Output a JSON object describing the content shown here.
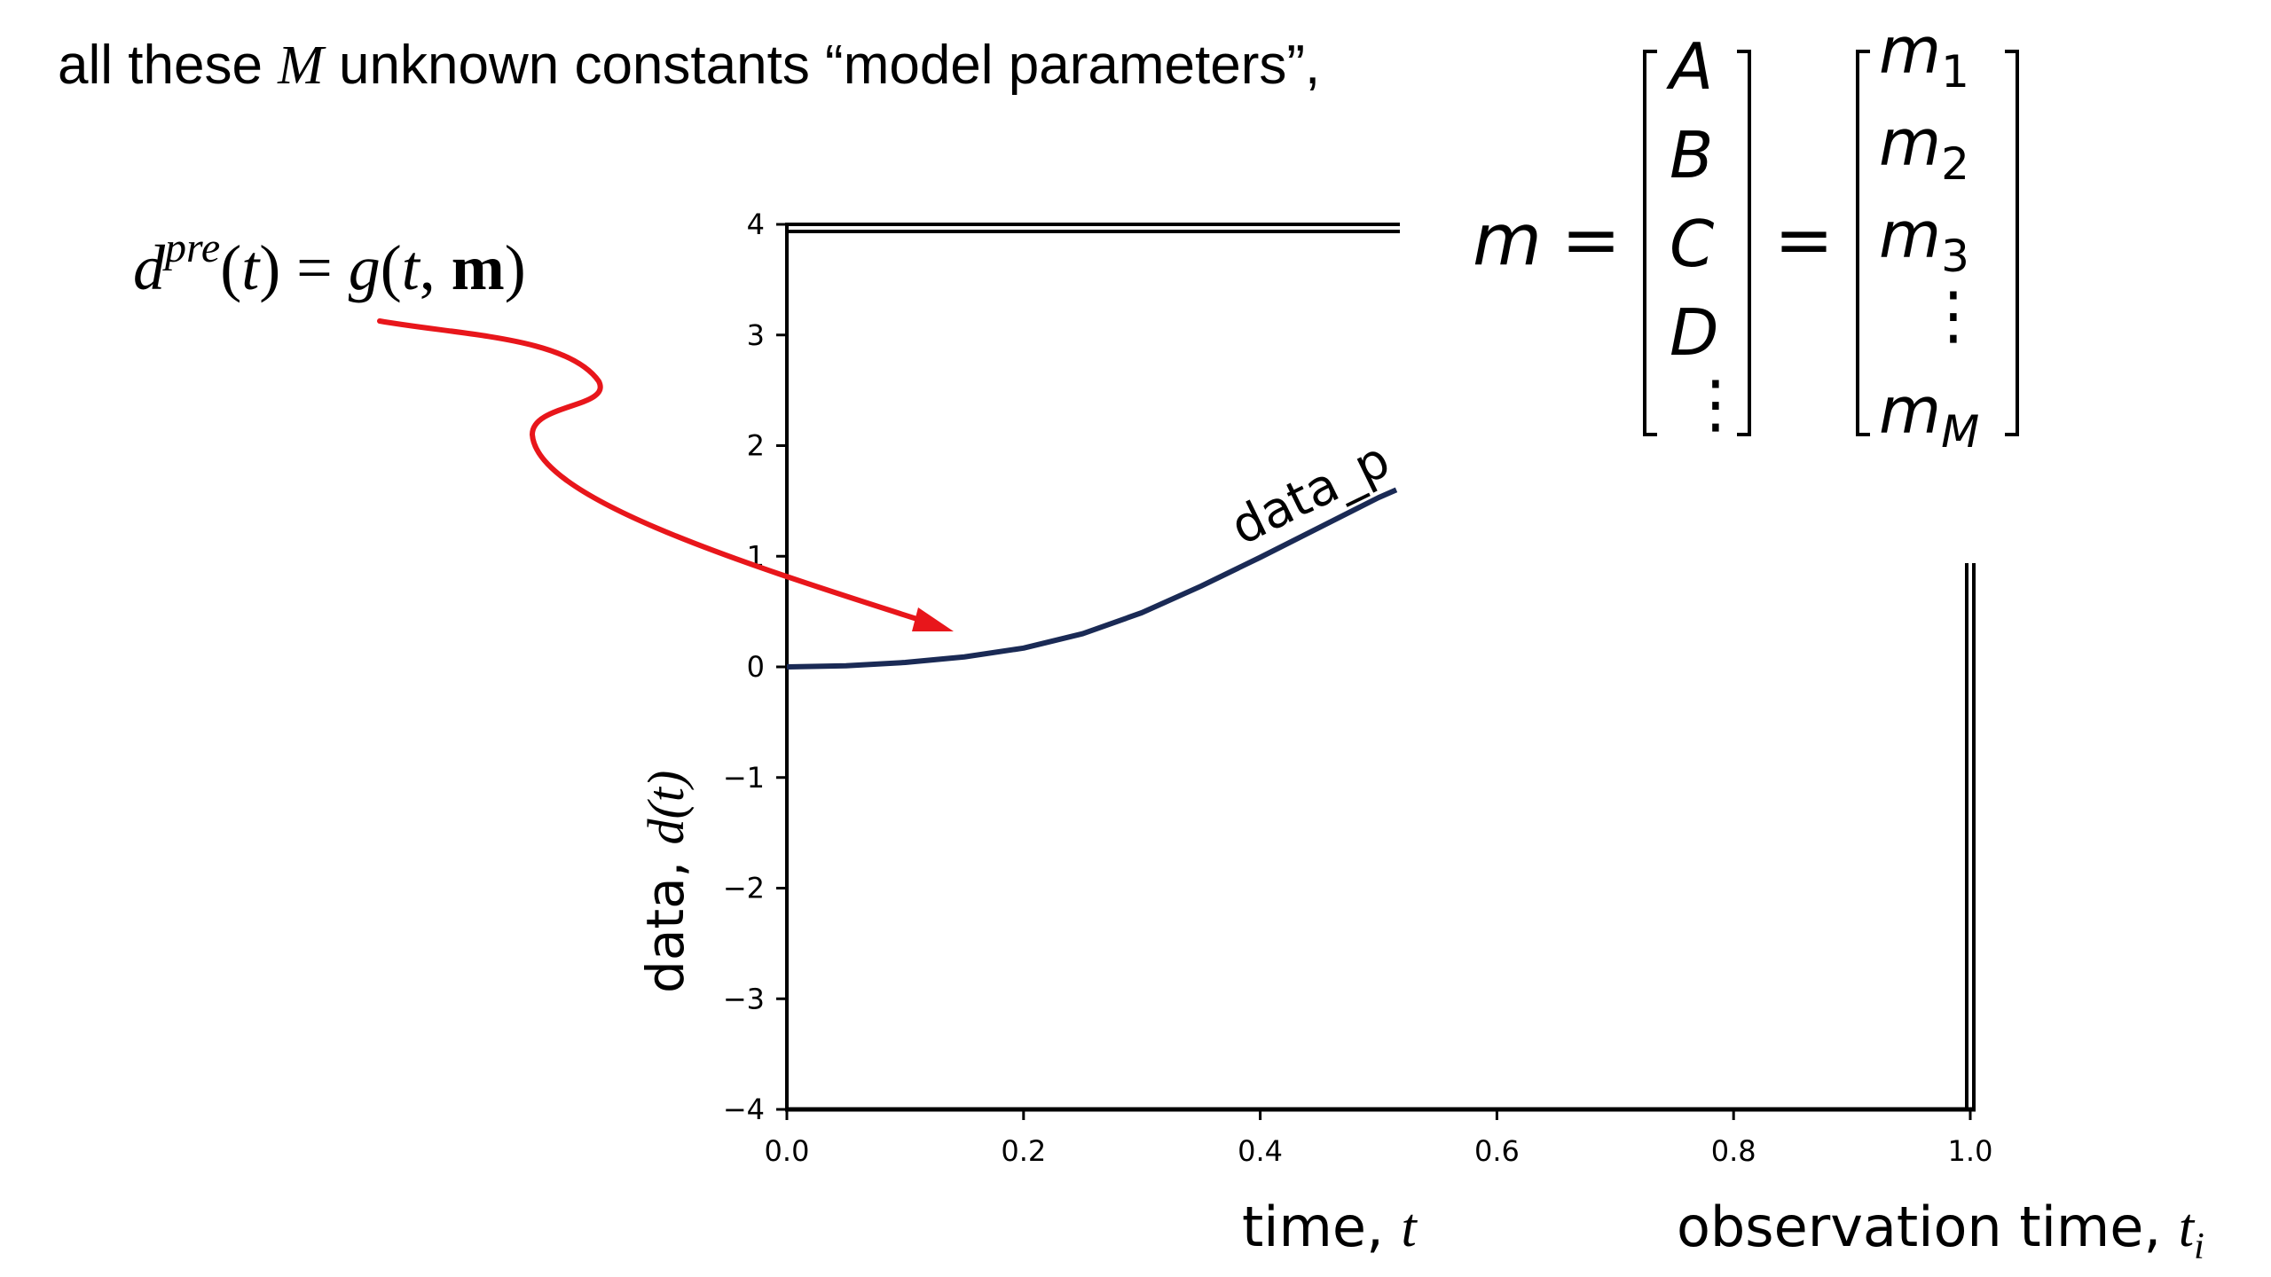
{
  "headline": {
    "before": "all these ",
    "var": "M",
    "after": " unknown constants “model parameters”,"
  },
  "equation_pre": {
    "d": "d",
    "sup": "pre",
    "rest_1": "(",
    "t1": "t",
    "rest_2": ") = ",
    "g": "g",
    "rest_3": "(",
    "t2": "t",
    "comma": ", ",
    "m_bold": "m",
    "rest_4": ")"
  },
  "equation_m": {
    "lhs": "m",
    "eq": "=",
    "left_vector": [
      "A",
      "B",
      "C",
      "D",
      "⋮"
    ],
    "right_vector": [
      {
        "base": "m",
        "sub": "1"
      },
      {
        "base": "m",
        "sub": "2"
      },
      {
        "base": "m",
        "sub": "3"
      },
      {
        "base": "⋮",
        "sub": ""
      },
      {
        "base": "m",
        "sub": "M"
      }
    ]
  },
  "colors": {
    "curve": "#1a2a55",
    "arrow": "#e8161b",
    "axes": "#000000"
  },
  "chart_data": {
    "type": "line",
    "series": [
      {
        "name": "",
        "x": [
          0.0,
          0.05,
          0.1,
          0.15,
          0.2,
          0.25,
          0.3,
          0.35,
          0.4,
          0.45,
          0.5,
          0.515
        ],
        "y": [
          0.0,
          0.01,
          0.04,
          0.09,
          0.17,
          0.3,
          0.49,
          0.73,
          0.99,
          1.26,
          1.53,
          1.6
        ]
      }
    ],
    "xlim": [
      0,
      1
    ],
    "ylim": [
      -4,
      4
    ],
    "xticks": [
      0.0,
      0.2,
      0.4,
      0.6,
      0.8,
      1.0
    ],
    "xtick_labels": [
      "0.0",
      "0.2",
      "0.4",
      "0.6",
      "0.8",
      "1.0"
    ],
    "yticks": [
      -4,
      -3,
      -2,
      -1,
      0,
      1,
      2,
      3,
      4
    ],
    "ytick_labels": [
      "−4",
      "−3",
      "−2",
      "−1",
      "0",
      "1",
      "2",
      "3",
      "4"
    ],
    "ylabel": "data, d(t)",
    "xlabel": "time, t",
    "xlabel2": "observation time, t_i",
    "curve_label": "data_p",
    "grid": false
  },
  "labels": {
    "ylabel_text": "data, ",
    "ylabel_math": "d(t)",
    "xlabel_text": "time, ",
    "xlabel_math": "t",
    "xlabel2_text": "observation time, ",
    "xlabel2_math": "t",
    "xlabel2_sub": "i",
    "curve_label": "data_p"
  }
}
